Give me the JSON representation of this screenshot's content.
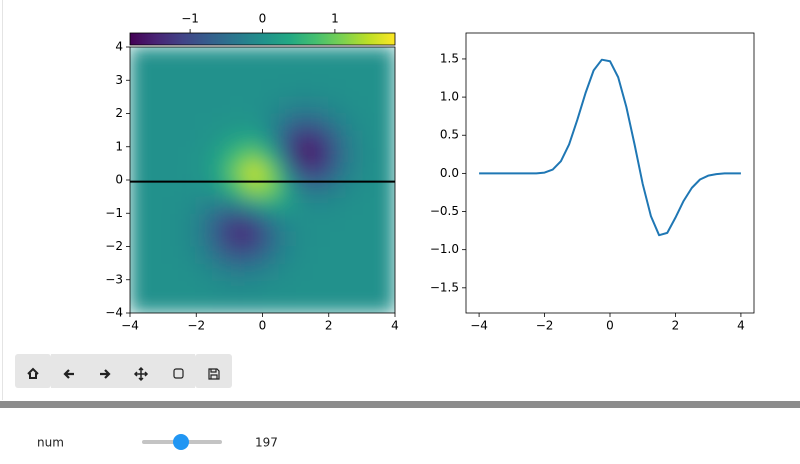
{
  "chart_data": [
    {
      "type": "heatmap",
      "x": [
        -3.75,
        -3.25,
        -2.75,
        -2.25,
        -1.75,
        -1.25,
        -0.75,
        -0.25,
        0.25,
        0.75,
        1.25,
        1.75,
        2.25,
        2.75,
        3.25,
        3.75
      ],
      "y": [
        -3.75,
        -3.25,
        -2.75,
        -2.25,
        -1.75,
        -1.25,
        -0.75,
        -0.25,
        0.25,
        0.75,
        1.25,
        1.75,
        2.25,
        2.75,
        3.25,
        3.75
      ],
      "z": [
        [
          0,
          0,
          0,
          0,
          0,
          -0.01,
          -0.01,
          -0.01,
          0,
          0,
          0,
          0,
          0,
          0,
          0,
          0
        ],
        [
          0,
          0,
          0,
          0,
          -0.02,
          -0.05,
          -0.07,
          -0.06,
          -0.03,
          -0.01,
          0,
          0,
          0,
          0,
          0,
          0
        ],
        [
          0,
          0,
          0,
          -0.02,
          -0.08,
          -0.21,
          -0.31,
          -0.28,
          -0.15,
          -0.05,
          -0.01,
          0,
          0,
          0,
          0,
          0
        ],
        [
          0,
          0,
          -0.01,
          -0.06,
          -0.23,
          -0.56,
          -0.83,
          -0.75,
          -0.41,
          -0.14,
          -0.03,
          0,
          0,
          0,
          0,
          0
        ],
        [
          0,
          0,
          -0.01,
          -0.09,
          -0.37,
          -0.91,
          -1.34,
          -1.19,
          -0.63,
          -0.2,
          -0.04,
          -0.01,
          0,
          0,
          0,
          0
        ],
        [
          0,
          0,
          -0.01,
          -0.09,
          -0.36,
          -0.85,
          -1.19,
          -0.96,
          -0.44,
          -0.11,
          -0.03,
          -0.02,
          -0.01,
          0,
          0,
          0
        ],
        [
          0,
          0,
          -0.01,
          -0.05,
          -0.17,
          -0.33,
          -0.27,
          0.08,
          0.3,
          0.17,
          -0.05,
          -0.11,
          -0.06,
          -0.02,
          0,
          0
        ],
        [
          0,
          0,
          0,
          -0.01,
          0.02,
          0.22,
          0.73,
          1.23,
          1.06,
          0.28,
          -0.35,
          -0.44,
          -0.24,
          -0.07,
          -0.01,
          0
        ],
        [
          0,
          0,
          0,
          0.01,
          0.1,
          0.42,
          1.06,
          1.54,
          1.08,
          -0.14,
          -1.04,
          -1.03,
          -0.53,
          -0.16,
          -0.03,
          0
        ],
        [
          0,
          0,
          0,
          0.01,
          0.08,
          0.31,
          0.74,
          0.98,
          0.44,
          -0.75,
          -1.6,
          -1.43,
          -0.72,
          -0.22,
          -0.04,
          0
        ],
        [
          0,
          0,
          0,
          0,
          0.03,
          0.13,
          0.29,
          0.34,
          -0.06,
          -0.85,
          -1.39,
          -1.19,
          -0.6,
          -0.18,
          -0.03,
          0
        ],
        [
          0,
          0,
          0,
          0,
          0.01,
          0.03,
          0.07,
          0.05,
          -0.14,
          -0.48,
          -0.71,
          -0.59,
          -0.3,
          -0.09,
          -0.02,
          0
        ],
        [
          0,
          0,
          0,
          0,
          0,
          0,
          0.01,
          0,
          -0.06,
          -0.15,
          -0.22,
          -0.18,
          -0.09,
          -0.03,
          0,
          0
        ],
        [
          0,
          0,
          0,
          0,
          0,
          0,
          0,
          0,
          -0.01,
          -0.03,
          -0.04,
          -0.03,
          -0.02,
          0,
          0,
          0
        ],
        [
          0,
          0,
          0,
          0,
          0,
          0,
          0,
          0,
          0,
          0,
          0,
          0,
          0,
          0,
          0,
          0
        ],
        [
          0,
          0,
          0,
          0,
          0,
          0,
          0,
          0,
          0,
          0,
          0,
          0,
          0,
          0,
          0,
          0
        ]
      ],
      "xlim": [
        -4,
        4
      ],
      "ylim": [
        -4,
        4
      ],
      "xticks": [
        {
          "value": -4,
          "label": "−4"
        },
        {
          "value": -2,
          "label": "−2"
        },
        0,
        2,
        4
      ],
      "yticks": [
        {
          "value": -4,
          "label": "−4"
        },
        {
          "value": -3,
          "label": "−3"
        },
        {
          "value": -2,
          "label": "−2"
        },
        {
          "value": -1,
          "label": "−1"
        },
        0,
        1,
        2,
        3,
        4
      ],
      "colormap": "viridis",
      "clim": [
        -1.83,
        1.83
      ],
      "cticks": [
        {
          "value": -1,
          "label": "−1"
        },
        0,
        1
      ],
      "hline": -0.05,
      "hline_color": "#000000"
    },
    {
      "type": "line",
      "x": [
        -4,
        -3.75,
        -3.5,
        -3.25,
        -3,
        -2.75,
        -2.5,
        -2.25,
        -2,
        -1.75,
        -1.5,
        -1.25,
        -1,
        -0.75,
        -0.5,
        -0.25,
        0,
        0.25,
        0.5,
        0.75,
        1,
        1.25,
        1.5,
        1.75,
        2,
        2.25,
        2.5,
        2.75,
        3,
        3.25,
        3.5,
        3.75,
        4
      ],
      "values": [
        0,
        0,
        0,
        0,
        0,
        0,
        0,
        0,
        0.01,
        0.05,
        0.16,
        0.38,
        0.7,
        1.05,
        1.35,
        1.49,
        1.47,
        1.26,
        0.87,
        0.38,
        -0.14,
        -0.56,
        -0.81,
        -0.78,
        -0.58,
        -0.36,
        -0.19,
        -0.08,
        -0.03,
        -0.01,
        0,
        0,
        0
      ],
      "color": "#1f77b4",
      "xlim": [
        -4.4,
        4.4
      ],
      "ylim": [
        -1.83,
        1.84
      ],
      "xticks": [
        {
          "value": -4,
          "label": "−4"
        },
        {
          "value": -2,
          "label": "−2"
        },
        0,
        2,
        4
      ],
      "yticks": [
        {
          "value": -1.5,
          "label": "−1.5"
        },
        {
          "value": -1,
          "label": "−1.0"
        },
        {
          "value": -0.5,
          "label": "−0.5"
        },
        {
          "value": 0,
          "label": "0.0"
        },
        0.5,
        {
          "value": 1,
          "label": "1.0"
        },
        1.5
      ]
    }
  ],
  "widget": {
    "label": "num",
    "value": 197
  }
}
